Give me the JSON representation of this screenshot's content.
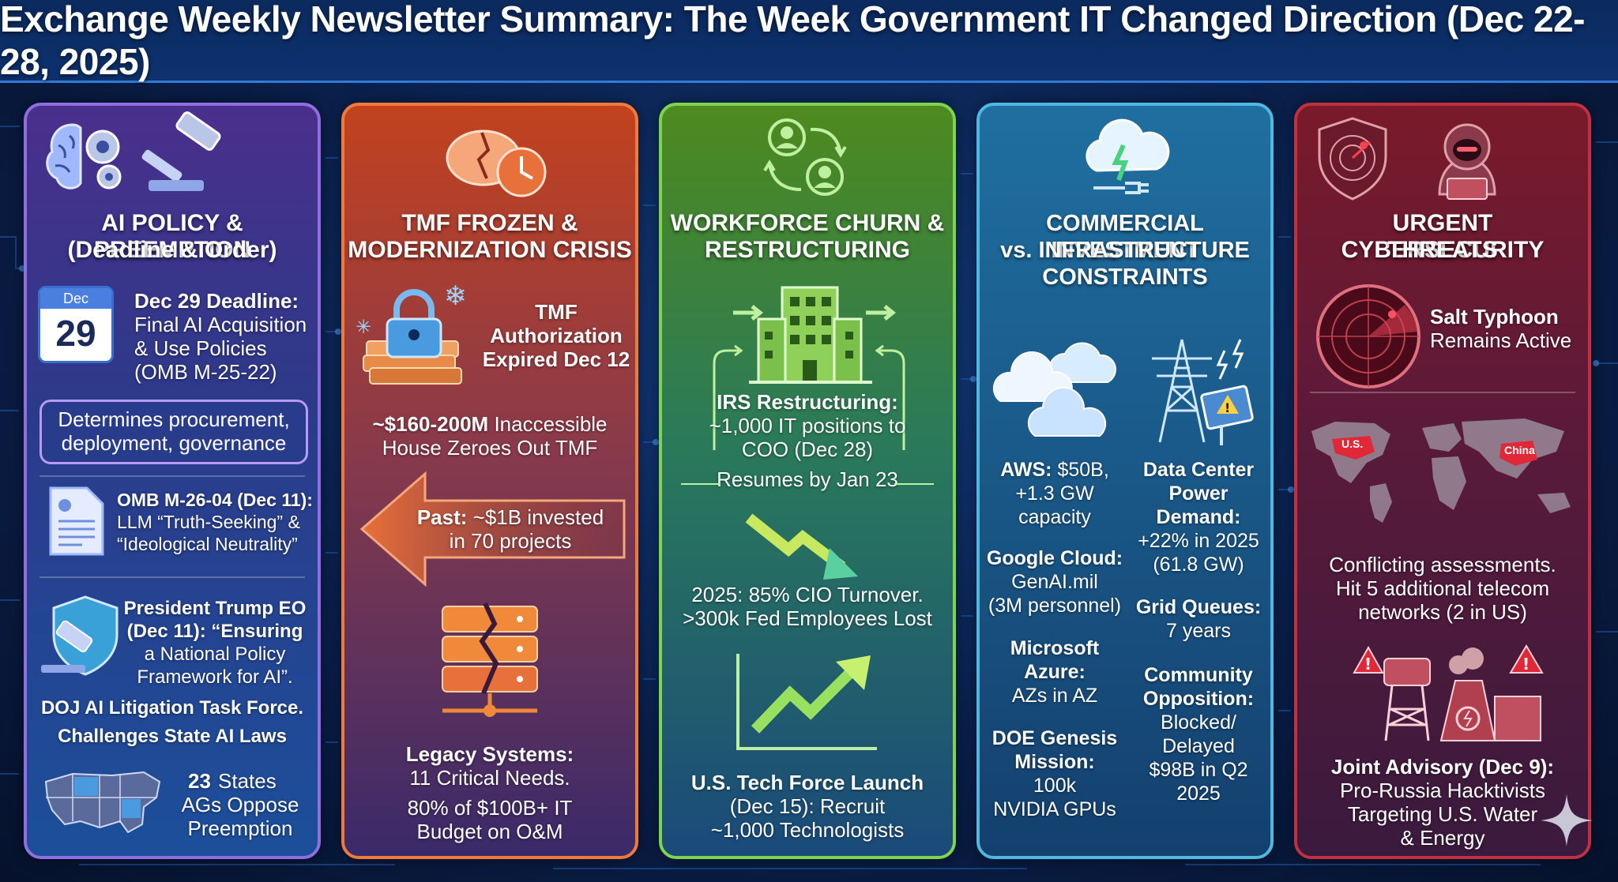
{
  "header": {
    "title": "Exchange Weekly Newsletter Summary: The Week Government IT Changed Direction (Dec 22-28, 2025)"
  },
  "panels": {
    "ai": {
      "title_line1": "AI POLICY & PREEMPTION",
      "title_line2": "(Deadline & Order)",
      "calendar_month": "Dec",
      "calendar_day": "29",
      "deadline_head": "Dec 29 Deadline:",
      "deadline_l1": "Final AI Acquisition",
      "deadline_l2": "& Use Policies",
      "deadline_l3": "(OMB M-25-22)",
      "box_l1": "Determines procurement,",
      "box_l2": "deployment, governance",
      "memo_head": "OMB M-26-04 (Dec 11):",
      "memo_l1": "LLM “Truth-Seeking” &",
      "memo_l2": "“Ideological Neutrality”",
      "eo_l1": "President Trump EO",
      "eo_l2": "(Dec 11): “Ensuring",
      "eo_l3": "a National Policy",
      "eo_l4": "Framework for AI”.",
      "doj_l1": "DOJ AI Litigation Task Force.",
      "doj_l2": "Challenges State AI Laws",
      "states_num": "23",
      "states_l1": "States",
      "states_l2": "AGs Oppose",
      "states_l3": "Preemption"
    },
    "tmf": {
      "title_line1": "TMF FROZEN &",
      "title_line2": "MODERNIZATION CRISIS",
      "auth_l1": "TMF",
      "auth_l2": "Authorization",
      "auth_l3": "Expired Dec 12",
      "funds_amount": "~$160-200M",
      "funds_rest": "Inaccessible",
      "funds_l2": "House Zeroes Out TMF",
      "past_head": "Past:",
      "past_rest": "~$1B invested",
      "past_l2": "in 70 projects",
      "legacy_head": "Legacy Systems:",
      "legacy_l1": "11 Critical Needs.",
      "legacy_l2": "80% of $100B+ IT",
      "legacy_l3": "Budget on O&M"
    },
    "workforce": {
      "title_line1": "WORKFORCE CHURN &",
      "title_line2": "RESTRUCTURING",
      "irs_head": "IRS Restructuring:",
      "irs_l1": "~1,000 IT positions to",
      "irs_l2": "COO (Dec 28)",
      "irs_l3": "Resumes by Jan 23",
      "turnover_l1": "2025: 85% CIO Turnover.",
      "turnover_l2": ">300k Fed Employees Lost",
      "force_head": "U.S. Tech Force Launch",
      "force_l1": "(Dec 15): Recruit",
      "force_l2": "~1,000 Technologists"
    },
    "commercial": {
      "title_line1": "COMMERCIAL INVESTMENT",
      "title_line2": "vs. INFRASTRUCTURE",
      "title_line3": "CONSTRAINTS",
      "aws_head": "AWS:",
      "aws_rest": "$50B,",
      "aws_l2": "+1.3 GW",
      "aws_l3": "capacity",
      "google_head": "Google Cloud:",
      "google_l1": "GenAI.mil",
      "google_l2": "(3M personnel)",
      "ms_l1": "Microsoft",
      "ms_l2": "Azure:",
      "ms_l3": "AZs in AZ",
      "doe_l1": "DOE Genesis",
      "doe_l2": "Mission:",
      "doe_l3": "100k",
      "doe_l4": "NVIDIA GPUs",
      "dc_l1": "Data Center",
      "dc_l2": "Power",
      "dc_l3": "Demand:",
      "dc_l4": "+22% in 2025",
      "dc_l5": "(61.8 GW)",
      "grid_head": "Grid Queues:",
      "grid_l1": "7 years",
      "comm_l1": "Community",
      "comm_l2": "Opposition:",
      "comm_l3": "Blocked/",
      "comm_l4": "Delayed",
      "comm_l5": "$98B in Q2",
      "comm_l6": "2025"
    },
    "cyber": {
      "title_line1": "URGENT CYBERSECURITY",
      "title_line2": "THREATS",
      "salt_head": "Salt Typhoon",
      "salt_l1": "Remains Active",
      "map_us": "U.S.",
      "map_china": "China",
      "assess_l1": "Conflicting assessments.",
      "assess_l2": "Hit 5 additional telecom",
      "assess_l3": "networks (2 in US)",
      "joint_head": "Joint Advisory (Dec 9):",
      "joint_l1": "Pro-Russia Hacktivists",
      "joint_l2": "Targeting U.S. Water",
      "joint_l3": "& Energy"
    }
  },
  "colors": {
    "ai_border": "#8f6fe0",
    "tmf_border": "#f07a3a",
    "workforce_border": "#7ed44a",
    "commercial_border": "#4fb8e0",
    "cyber_border": "#c03040"
  },
  "icons": [
    "brain-gears-icon",
    "gavel-icon",
    "calendar-icon",
    "document-icon",
    "shield-gavel-icon",
    "us-map-icon",
    "broken-piggy-bank-icon",
    "locked-money-icon",
    "left-arrow-icon",
    "broken-server-icon",
    "people-cycle-icon",
    "building-icon",
    "down-trend-arrow-icon",
    "up-trend-chart-icon",
    "cloud-plug-icon",
    "clouds-icon",
    "power-tower-icon",
    "cyber-shield-icon",
    "hacker-icon",
    "radar-icon",
    "world-map-icon",
    "infrastructure-warning-icon",
    "sparkle-icon"
  ]
}
